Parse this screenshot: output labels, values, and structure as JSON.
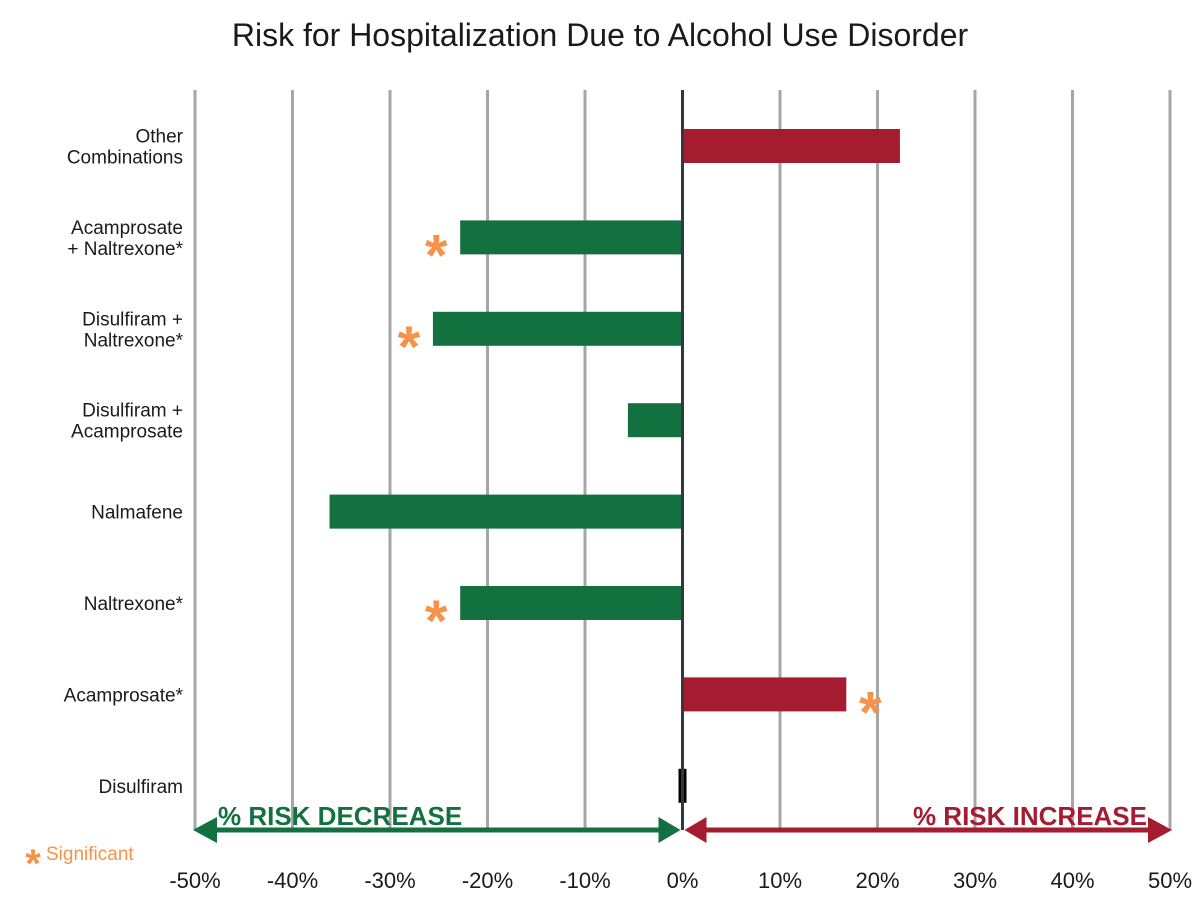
{
  "chart_data": {
    "type": "bar",
    "orientation": "horizontal",
    "title": "Risk for Hospitalization Due to Alcohol  Use Disorder",
    "xlim": [
      -50,
      50
    ],
    "xticks": [
      -50,
      -40,
      -30,
      -20,
      -10,
      0,
      10,
      20,
      30,
      40,
      50
    ],
    "tick_labels": [
      "-50%",
      "-40%",
      "-30%",
      "-20%",
      "-10%",
      "0%",
      "10%",
      "20%",
      "30%",
      "40%",
      "50%"
    ],
    "grid": "vertical",
    "categories": [
      {
        "lines": [
          "Other",
          "Combinations"
        ],
        "value": 22.3,
        "significant": false
      },
      {
        "lines": [
          "Acamprosate",
          "+ Naltrexone*"
        ],
        "value": -22.8,
        "significant": true
      },
      {
        "lines": [
          "Disulfiram +",
          "Naltrexone*"
        ],
        "value": -25.6,
        "significant": true
      },
      {
        "lines": [
          "Disulfiram +",
          "Acamprosate"
        ],
        "value": -5.6,
        "significant": false
      },
      {
        "lines": [
          "Nalmafene"
        ],
        "value": -36.2,
        "significant": false
      },
      {
        "lines": [
          "Naltrexone*"
        ],
        "value": -22.8,
        "significant": true
      },
      {
        "lines": [
          "Acamprosate*"
        ],
        "value": 16.8,
        "significant": true
      },
      {
        "lines": [
          "Disulfiram"
        ],
        "value": 0,
        "significant": false
      }
    ],
    "significance_marker": "*",
    "arrows": {
      "decrease_label": "% RISK DECREASE",
      "increase_label": "% RISK INCREASE"
    },
    "legend": {
      "marker": "*",
      "label": "Significant",
      "placement": "bottom-left"
    },
    "colors": {
      "decrease": "#13703f",
      "increase": "#a51c30",
      "marker": "#f7924a",
      "grid": "#a6a6a6",
      "zero_line": "#2f3a40",
      "reference_bar": "#000000"
    }
  }
}
